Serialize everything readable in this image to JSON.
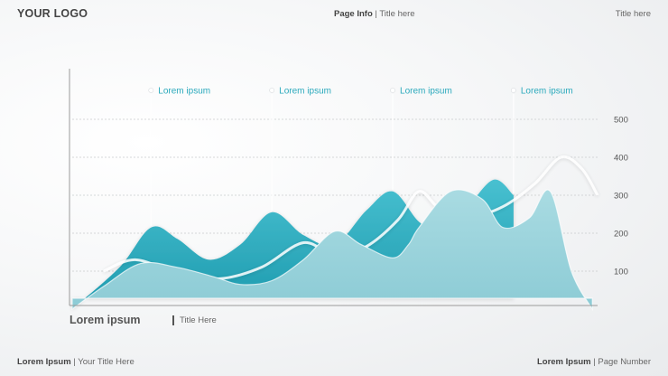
{
  "header": {
    "logo": "YOUR LOGO",
    "page_info_label": "Page Info",
    "page_info_title": "Title here",
    "title_right": "Title here"
  },
  "chart_title": "Lorem ipsum",
  "chart_subtitle": "Title Here",
  "footer": {
    "left_label": "Lorem Ipsum",
    "left_text": "Your Title Here",
    "right_label": "Lorem Ipsum",
    "right_text": "Page Number"
  },
  "colors": {
    "front_area": "#9ad3db",
    "back_area": "#35b7c9",
    "back_area_dark": "#1f9db1",
    "annotation_text": "#2aa9bc",
    "grid": "#c9cbcd",
    "axis": "#9a9a9a"
  },
  "chart_data": {
    "type": "area",
    "ylim": [
      0,
      550
    ],
    "yticks": [
      100,
      200,
      300,
      400,
      500
    ],
    "grid": "dashed",
    "series": [
      {
        "role": "back",
        "x": [
          0,
          0.09,
          0.15,
          0.2,
          0.26,
          0.32,
          0.38,
          0.44,
          0.5,
          0.56,
          0.61,
          0.66,
          0.7,
          0.74,
          0.8,
          0.84
        ],
        "values": [
          0,
          110,
          215,
          185,
          130,
          170,
          255,
          195,
          170,
          260,
          310,
          230,
          205,
          245,
          340,
          300
        ]
      },
      {
        "role": "front",
        "x": [
          0,
          0.06,
          0.13,
          0.2,
          0.27,
          0.32,
          0.38,
          0.44,
          0.5,
          0.55,
          0.61,
          0.64,
          0.66,
          0.72,
          0.78,
          0.82,
          0.87,
          0.91,
          0.95,
          0.99
        ],
        "values": [
          0,
          60,
          120,
          110,
          85,
          65,
          75,
          130,
          205,
          170,
          135,
          170,
          215,
          310,
          290,
          215,
          240,
          310,
          100,
          0
        ]
      },
      {
        "role": "outline",
        "x": [
          0.06,
          0.12,
          0.2,
          0.28,
          0.36,
          0.44,
          0.5,
          0.56,
          0.62,
          0.66,
          0.7,
          0.76,
          0.82,
          0.88,
          0.93,
          0.97,
          1.0
        ],
        "values": [
          100,
          130,
          95,
          80,
          110,
          175,
          140,
          165,
          235,
          310,
          265,
          245,
          270,
          330,
          400,
          370,
          300
        ]
      }
    ],
    "annotations": [
      {
        "label": "Lorem ipsum",
        "x": 0.15
      },
      {
        "label": "Lorem ipsum",
        "x": 0.38
      },
      {
        "label": "Lorem ipsum",
        "x": 0.61
      },
      {
        "label": "Lorem ipsum",
        "x": 0.84
      }
    ]
  }
}
